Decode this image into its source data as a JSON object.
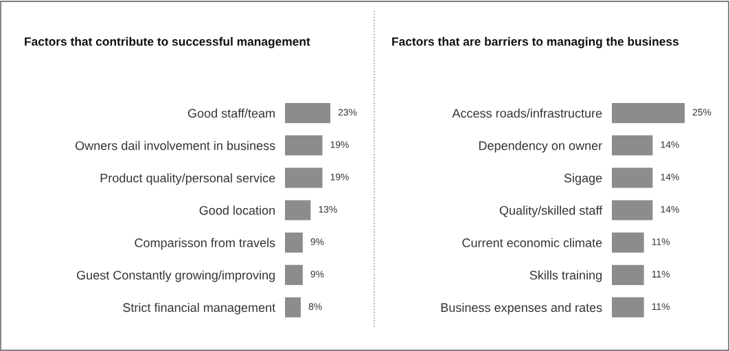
{
  "chart_data": [
    {
      "type": "bar",
      "orientation": "horizontal",
      "relative": false,
      "title": "Factors that contribute to successful management",
      "categories": [
        "Good staff/team",
        "Owners dail involvement in business",
        "Product quality/personal service",
        "Good location",
        "Comparisson from travels",
        "Guest Constantly growing/improving",
        "Strict financial management"
      ],
      "values": [
        23,
        19,
        19,
        13,
        9,
        9,
        8
      ],
      "value_labels": [
        "23%",
        "19%",
        "19%",
        "13%",
        "9%",
        "9%",
        "8%"
      ],
      "color": "#8c8c8c"
    },
    {
      "type": "bar",
      "orientation": "horizontal",
      "relative": false,
      "title": "Factors that are barriers to managing the business",
      "categories": [
        "Access roads/infrastructure",
        "Dependency on owner",
        "Sigage",
        "Quality/skilled staff",
        "Current economic climate",
        "Skills training",
        "Business expenses and rates"
      ],
      "values": [
        25,
        14,
        14,
        14,
        11,
        11,
        11
      ],
      "value_labels": [
        "25%",
        "14%",
        "14%",
        "14%",
        "11%",
        "11%",
        "11%"
      ],
      "color": "#8c8c8c"
    }
  ]
}
